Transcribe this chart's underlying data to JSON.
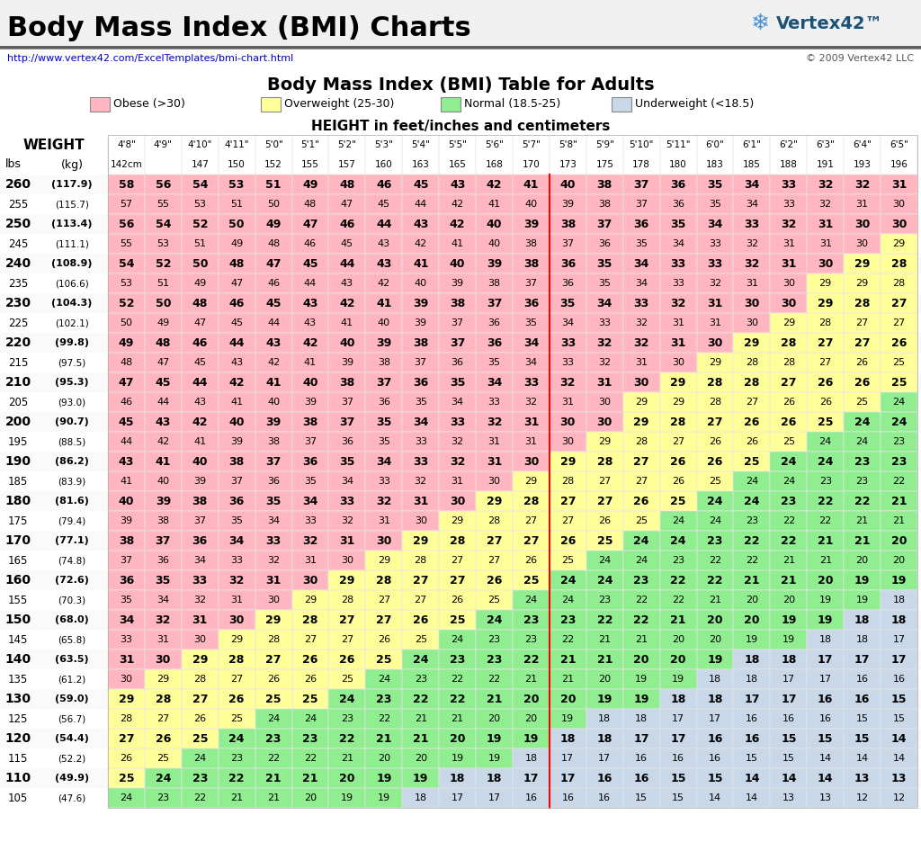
{
  "title_main": "Body Mass Index (BMI) Charts",
  "title_table": "Body Mass Index (BMI) Table for Adults",
  "url": "http://www.vertex42.com/ExcelTemplates/bmi-chart.html",
  "copyright": "© 2009 Vertex42 LLC",
  "legend": [
    {
      "label": "Obese (>30)",
      "color": "#FFB6C1"
    },
    {
      "label": "Overweight (25-30)",
      "color": "#FFFF99"
    },
    {
      "label": "Normal (18.5-25)",
      "color": "#90EE90"
    },
    {
      "label": "Underweight (<18.5)",
      "color": "#C8D8E8"
    }
  ],
  "height_labels_ft": [
    "4'8\"",
    "4'9\"",
    "4'10\"",
    "4'11\"",
    "5'0\"",
    "5'1\"",
    "5'2\"",
    "5'3\"",
    "5'4\"",
    "5'5\"",
    "5'6\"",
    "5'7\"",
    "5'8\"",
    "5'9\"",
    "5'10\"",
    "5'11\"",
    "6'0\"",
    "6'1\"",
    "6'2\"",
    "6'3\"",
    "6'4\"",
    "6'5\""
  ],
  "height_labels_cm": [
    "142cm",
    "",
    "147",
    "150",
    "152",
    "155",
    "157",
    "160",
    "163",
    "165",
    "168",
    "170",
    "173",
    "175",
    "178",
    "180",
    "183",
    "185",
    "188",
    "191",
    "193",
    "196"
  ],
  "weight_lbs": [
    260,
    255,
    250,
    245,
    240,
    235,
    230,
    225,
    220,
    215,
    210,
    205,
    200,
    195,
    190,
    185,
    180,
    175,
    170,
    165,
    160,
    155,
    150,
    145,
    140,
    135,
    130,
    125,
    120,
    115,
    110,
    105
  ],
  "weight_kg": [
    "117.9",
    "115.7",
    "113.4",
    "111.1",
    "108.9",
    "106.6",
    "104.3",
    "102.1",
    "99.8",
    "97.5",
    "95.3",
    "93.0",
    "90.7",
    "88.5",
    "86.2",
    "83.9",
    "81.6",
    "79.4",
    "77.1",
    "74.8",
    "72.6",
    "70.3",
    "68.0",
    "65.8",
    "63.5",
    "61.2",
    "59.0",
    "56.7",
    "54.4",
    "52.2",
    "49.9",
    "47.6"
  ],
  "bmi_data": [
    [
      58,
      56,
      54,
      53,
      51,
      49,
      48,
      46,
      45,
      43,
      42,
      41,
      40,
      38,
      37,
      36,
      35,
      34,
      33,
      32,
      32,
      31
    ],
    [
      57,
      55,
      53,
      51,
      50,
      48,
      47,
      45,
      44,
      42,
      41,
      40,
      39,
      38,
      37,
      36,
      35,
      34,
      33,
      32,
      31,
      30
    ],
    [
      56,
      54,
      52,
      50,
      49,
      47,
      46,
      44,
      43,
      42,
      40,
      39,
      38,
      37,
      36,
      35,
      34,
      33,
      32,
      31,
      30,
      30
    ],
    [
      55,
      53,
      51,
      49,
      48,
      46,
      45,
      43,
      42,
      41,
      40,
      38,
      37,
      36,
      35,
      34,
      33,
      32,
      31,
      31,
      30,
      29
    ],
    [
      54,
      52,
      50,
      48,
      47,
      45,
      44,
      43,
      41,
      40,
      39,
      38,
      36,
      35,
      34,
      33,
      33,
      32,
      31,
      30,
      29,
      28
    ],
    [
      53,
      51,
      49,
      47,
      46,
      44,
      43,
      42,
      40,
      39,
      38,
      37,
      36,
      35,
      34,
      33,
      32,
      31,
      30,
      29,
      29,
      28
    ],
    [
      52,
      50,
      48,
      46,
      45,
      43,
      42,
      41,
      39,
      38,
      37,
      36,
      35,
      34,
      33,
      32,
      31,
      30,
      30,
      29,
      28,
      27
    ],
    [
      50,
      49,
      47,
      45,
      44,
      43,
      41,
      40,
      39,
      37,
      36,
      35,
      34,
      33,
      32,
      31,
      31,
      30,
      29,
      28,
      27,
      27
    ],
    [
      49,
      48,
      46,
      44,
      43,
      42,
      40,
      39,
      38,
      37,
      36,
      34,
      33,
      32,
      32,
      31,
      30,
      29,
      28,
      27,
      27,
      26
    ],
    [
      48,
      47,
      45,
      43,
      42,
      41,
      39,
      38,
      37,
      36,
      35,
      34,
      33,
      32,
      31,
      30,
      29,
      28,
      28,
      27,
      26,
      25
    ],
    [
      47,
      45,
      44,
      42,
      41,
      40,
      38,
      37,
      36,
      35,
      34,
      33,
      32,
      31,
      30,
      29,
      28,
      28,
      27,
      26,
      26,
      25
    ],
    [
      46,
      44,
      43,
      41,
      40,
      39,
      37,
      36,
      35,
      34,
      33,
      32,
      31,
      30,
      29,
      29,
      28,
      27,
      26,
      26,
      25,
      24
    ],
    [
      45,
      43,
      42,
      40,
      39,
      38,
      37,
      35,
      34,
      33,
      32,
      31,
      30,
      30,
      29,
      28,
      27,
      26,
      26,
      25,
      24,
      24
    ],
    [
      44,
      42,
      41,
      39,
      38,
      37,
      36,
      35,
      33,
      32,
      31,
      31,
      30,
      29,
      28,
      27,
      26,
      26,
      25,
      24,
      24,
      23
    ],
    [
      43,
      41,
      40,
      38,
      37,
      36,
      35,
      34,
      33,
      32,
      31,
      30,
      29,
      28,
      27,
      26,
      26,
      25,
      24,
      24,
      23,
      23
    ],
    [
      41,
      40,
      39,
      37,
      36,
      35,
      34,
      33,
      32,
      31,
      30,
      29,
      28,
      27,
      27,
      26,
      25,
      24,
      24,
      23,
      23,
      22
    ],
    [
      40,
      39,
      38,
      36,
      35,
      34,
      33,
      32,
      31,
      30,
      29,
      28,
      27,
      27,
      26,
      25,
      24,
      24,
      23,
      22,
      22,
      21
    ],
    [
      39,
      38,
      37,
      35,
      34,
      33,
      32,
      31,
      30,
      29,
      28,
      27,
      27,
      26,
      25,
      24,
      24,
      23,
      22,
      22,
      21,
      21
    ],
    [
      38,
      37,
      36,
      34,
      33,
      32,
      31,
      30,
      29,
      28,
      27,
      27,
      26,
      25,
      24,
      24,
      23,
      22,
      22,
      21,
      21,
      20
    ],
    [
      37,
      36,
      34,
      33,
      32,
      31,
      30,
      29,
      28,
      27,
      27,
      26,
      25,
      24,
      24,
      23,
      22,
      22,
      21,
      21,
      20,
      20
    ],
    [
      36,
      35,
      33,
      32,
      31,
      30,
      29,
      28,
      27,
      27,
      26,
      25,
      24,
      24,
      23,
      22,
      22,
      21,
      21,
      20,
      19,
      19
    ],
    [
      35,
      34,
      32,
      31,
      30,
      29,
      28,
      27,
      27,
      26,
      25,
      24,
      24,
      23,
      22,
      22,
      21,
      20,
      20,
      19,
      19,
      18
    ],
    [
      34,
      32,
      31,
      30,
      29,
      28,
      27,
      27,
      26,
      25,
      24,
      23,
      23,
      22,
      22,
      21,
      20,
      20,
      19,
      19,
      18,
      18
    ],
    [
      33,
      31,
      30,
      29,
      28,
      27,
      27,
      26,
      25,
      24,
      23,
      23,
      22,
      21,
      21,
      20,
      20,
      19,
      19,
      18,
      18,
      17
    ],
    [
      31,
      30,
      29,
      28,
      27,
      26,
      26,
      25,
      24,
      23,
      23,
      22,
      21,
      21,
      20,
      20,
      19,
      18,
      18,
      17,
      17,
      17
    ],
    [
      30,
      29,
      28,
      27,
      26,
      26,
      25,
      24,
      23,
      22,
      22,
      21,
      21,
      20,
      19,
      19,
      18,
      18,
      17,
      17,
      16,
      16
    ],
    [
      29,
      28,
      27,
      26,
      25,
      25,
      24,
      23,
      22,
      22,
      21,
      20,
      20,
      19,
      19,
      18,
      18,
      17,
      17,
      16,
      16,
      15
    ],
    [
      28,
      27,
      26,
      25,
      24,
      24,
      23,
      22,
      21,
      21,
      20,
      20,
      19,
      18,
      18,
      17,
      17,
      16,
      16,
      16,
      15,
      15
    ],
    [
      27,
      26,
      25,
      24,
      23,
      23,
      22,
      21,
      21,
      20,
      19,
      19,
      18,
      18,
      17,
      17,
      16,
      16,
      15,
      15,
      15,
      14
    ],
    [
      26,
      25,
      24,
      23,
      22,
      22,
      21,
      20,
      20,
      19,
      19,
      18,
      17,
      17,
      16,
      16,
      16,
      15,
      15,
      14,
      14,
      14
    ],
    [
      25,
      24,
      23,
      22,
      21,
      21,
      20,
      19,
      19,
      18,
      18,
      17,
      17,
      16,
      16,
      15,
      15,
      14,
      14,
      14,
      13,
      13
    ],
    [
      24,
      23,
      22,
      21,
      21,
      20,
      19,
      19,
      18,
      17,
      17,
      16,
      16,
      16,
      15,
      15,
      14,
      14,
      13,
      13,
      12,
      12
    ]
  ],
  "bold_rows": [
    0,
    2,
    4,
    6,
    8,
    10,
    12,
    14,
    16,
    18,
    20,
    22,
    24,
    26,
    28,
    30
  ],
  "color_obese": "#FFB6C1",
  "color_overweight": "#FFFF99",
  "color_normal": "#90EE90",
  "color_underweight": "#C8D8E8",
  "color_header_bg": "#E8E8E8",
  "color_alt_row": "#F8F8F8"
}
